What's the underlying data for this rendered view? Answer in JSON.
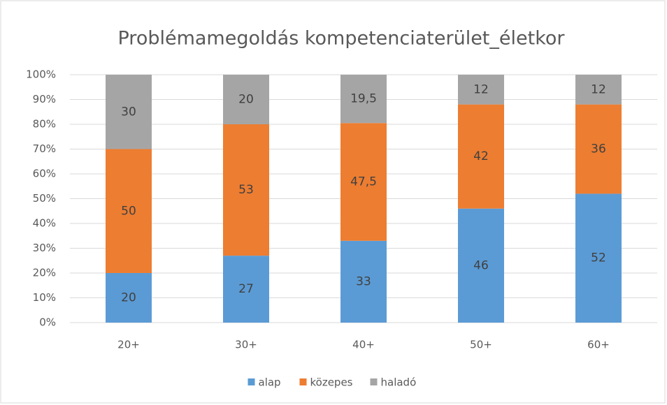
{
  "chart_data": {
    "type": "stacked_bar",
    "title": "Problémamegoldás kompetenciaterület_életkor",
    "categories": [
      "20+",
      "30+",
      "40+",
      "50+",
      "60+"
    ],
    "series": [
      {
        "name": "alap",
        "color": "#5b9bd5",
        "values": [
          20,
          27,
          33,
          46,
          52
        ]
      },
      {
        "name": "közepes",
        "color": "#ed7d31",
        "values": [
          50,
          53,
          47.5,
          42,
          36
        ],
        "value_labels": [
          "50",
          "53",
          "47,5",
          "42",
          "36"
        ]
      },
      {
        "name": "haladó",
        "color": "#a5a5a5",
        "values": [
          30,
          20,
          19.5,
          12,
          12
        ],
        "value_labels": [
          "30",
          "20",
          "19,5",
          "12",
          "12"
        ]
      }
    ],
    "ylim": [
      0,
      100
    ],
    "yticks": [
      {
        "value": 0,
        "label": "0%"
      },
      {
        "value": 10,
        "label": "10%"
      },
      {
        "value": 20,
        "label": "20%"
      },
      {
        "value": 30,
        "label": "30%"
      },
      {
        "value": 40,
        "label": "40%"
      },
      {
        "value": 50,
        "label": "50%"
      },
      {
        "value": 60,
        "label": "60%"
      },
      {
        "value": 70,
        "label": "70%"
      },
      {
        "value": 80,
        "label": "80%"
      },
      {
        "value": 90,
        "label": "90%"
      },
      {
        "value": 100,
        "label": "100%"
      }
    ],
    "grid": true,
    "legend": "bottom"
  }
}
